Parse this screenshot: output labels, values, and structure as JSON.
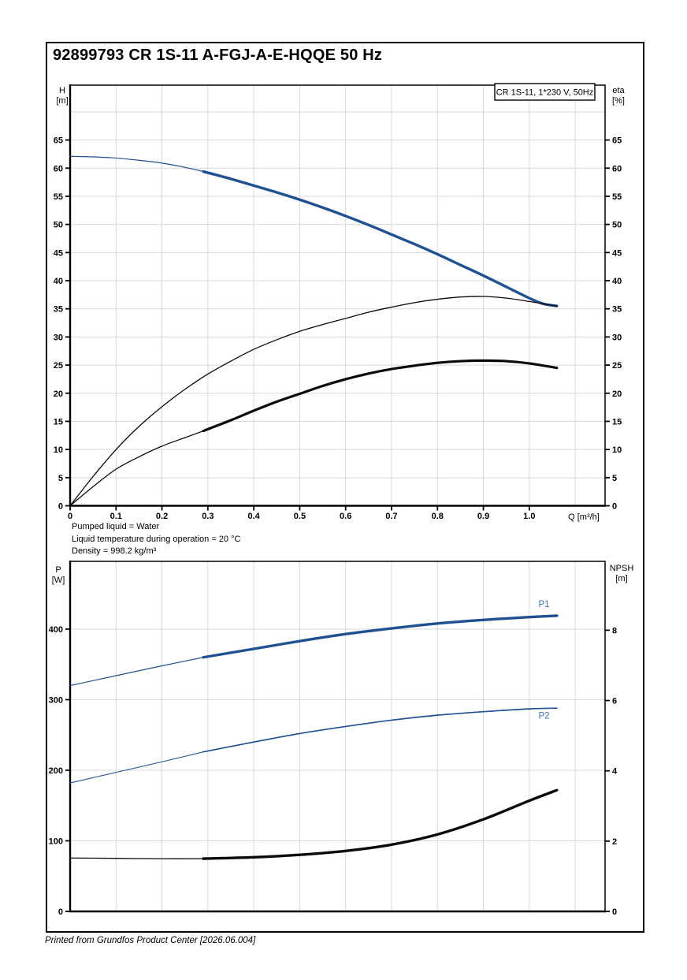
{
  "page": {
    "title": "92899793 CR 1S-11 A-FGJ-A-E-HQQE 50 Hz",
    "footer": "Printed from Grundfos Product Center [2026.06.004]"
  },
  "info_lines": [
    "Pumped liquid = Water",
    "Liquid temperature during operation = 20 °C",
    "Density = 998.2 kg/m³"
  ],
  "colors": {
    "curve_blue": "#1f5091",
    "curve_black": "#0a0a0a",
    "grid": "#d9d9d9",
    "series_label_blue": "#3f72ae",
    "frame": "#000000"
  },
  "chart_data": [
    {
      "name": "head-efficiency-chart",
      "type": "line",
      "legend": "CR 1S-11, 1*230 V, 50Hz",
      "x": {
        "label": "Q [m³/h]",
        "min": 0,
        "max": 1.165,
        "tick_values": [
          0,
          0.1,
          0.2,
          0.3,
          0.4,
          0.5,
          0.6,
          0.7,
          0.8,
          0.9,
          1.0
        ],
        "tick_labels": [
          "0",
          "0.1",
          "0.2",
          "0.3",
          "0.4",
          "0.5",
          "0.6",
          "0.7",
          "0.8",
          "0.9",
          "1.0"
        ],
        "grid": {
          "from": 0.1,
          "to": 1.1,
          "step": 0.1
        }
      },
      "y_left": {
        "label_lines": [
          "H",
          "[m]"
        ],
        "min": 0,
        "max": 74.75,
        "tick_values": [
          0,
          5,
          10,
          15,
          20,
          25,
          30,
          35,
          40,
          45,
          50,
          55,
          60,
          65
        ],
        "tick_labels": [
          "0",
          "5",
          "10",
          "15",
          "20",
          "25",
          "30",
          "35",
          "40",
          "45",
          "50",
          "55",
          "60",
          "65"
        ],
        "grid": {
          "from": 5,
          "to": 70,
          "step": 5
        }
      },
      "y_right": {
        "label_lines": [
          "eta",
          "[%]"
        ],
        "min": 0,
        "max": 74.75,
        "tick_values": [
          0,
          5,
          10,
          15,
          20,
          25,
          30,
          35,
          40,
          45,
          50,
          55,
          60,
          65
        ],
        "tick_labels": [
          "0",
          "5",
          "10",
          "15",
          "20",
          "25",
          "30",
          "35",
          "40",
          "45",
          "50",
          "55",
          "60",
          "65"
        ]
      },
      "series": [
        {
          "name": "head-curve",
          "display": "H",
          "axis": "left",
          "color": "#1f5091",
          "segments": [
            {
              "width": 1.2,
              "points": [
                [
                  0,
                  62.1
                ],
                [
                  0.05,
                  62.0
                ],
                [
                  0.1,
                  61.8
                ],
                [
                  0.15,
                  61.4
                ],
                [
                  0.2,
                  60.9
                ],
                [
                  0.25,
                  60.15
                ],
                [
                  0.29,
                  59.4
                ]
              ]
            },
            {
              "width": 3.4,
              "points": [
                [
                  0.29,
                  59.4
                ],
                [
                  0.35,
                  58.1
                ],
                [
                  0.4,
                  56.9
                ],
                [
                  0.45,
                  55.7
                ],
                [
                  0.5,
                  54.4
                ],
                [
                  0.55,
                  53.0
                ],
                [
                  0.6,
                  51.5
                ],
                [
                  0.65,
                  49.9
                ],
                [
                  0.7,
                  48.2
                ],
                [
                  0.75,
                  46.5
                ],
                [
                  0.8,
                  44.7
                ],
                [
                  0.85,
                  42.8
                ],
                [
                  0.9,
                  40.9
                ],
                [
                  0.95,
                  38.9
                ],
                [
                  1.0,
                  36.9
                ],
                [
                  1.03,
                  35.9
                ],
                [
                  1.06,
                  35.5
                ]
              ]
            }
          ]
        },
        {
          "name": "efficiency-pump-curve",
          "display": "eta pump",
          "axis": "left",
          "color": "#0a0a0a",
          "segments": [
            {
              "width": 1.3,
              "points": [
                [
                  0,
                  0
                ],
                [
                  0.05,
                  5.2
                ],
                [
                  0.1,
                  10.0
                ],
                [
                  0.15,
                  14.1
                ],
                [
                  0.2,
                  17.6
                ],
                [
                  0.25,
                  20.7
                ],
                [
                  0.3,
                  23.4
                ],
                [
                  0.35,
                  25.7
                ],
                [
                  0.4,
                  27.8
                ],
                [
                  0.45,
                  29.5
                ],
                [
                  0.5,
                  31.0
                ],
                [
                  0.55,
                  32.2
                ],
                [
                  0.6,
                  33.3
                ],
                [
                  0.65,
                  34.4
                ],
                [
                  0.7,
                  35.3
                ],
                [
                  0.75,
                  36.1
                ],
                [
                  0.8,
                  36.7
                ],
                [
                  0.85,
                  37.1
                ],
                [
                  0.9,
                  37.2
                ],
                [
                  0.95,
                  36.9
                ],
                [
                  1.0,
                  36.3
                ],
                [
                  1.06,
                  35.5
                ]
              ]
            }
          ]
        },
        {
          "name": "efficiency-total-curve",
          "display": "eta pump+motor",
          "axis": "left",
          "color": "#0a0a0a",
          "segments": [
            {
              "width": 1.3,
              "points": [
                [
                  0,
                  0
                ],
                [
                  0.05,
                  3.4
                ],
                [
                  0.1,
                  6.5
                ],
                [
                  0.15,
                  8.7
                ],
                [
                  0.2,
                  10.6
                ],
                [
                  0.25,
                  12.1
                ],
                [
                  0.29,
                  13.3
                ]
              ]
            },
            {
              "width": 3.2,
              "points": [
                [
                  0.29,
                  13.3
                ],
                [
                  0.35,
                  15.2
                ],
                [
                  0.4,
                  16.9
                ],
                [
                  0.45,
                  18.5
                ],
                [
                  0.5,
                  19.9
                ],
                [
                  0.55,
                  21.3
                ],
                [
                  0.6,
                  22.5
                ],
                [
                  0.65,
                  23.5
                ],
                [
                  0.7,
                  24.3
                ],
                [
                  0.75,
                  24.9
                ],
                [
                  0.8,
                  25.4
                ],
                [
                  0.85,
                  25.7
                ],
                [
                  0.9,
                  25.8
                ],
                [
                  0.95,
                  25.7
                ],
                [
                  1.0,
                  25.3
                ],
                [
                  1.06,
                  24.5
                ]
              ]
            }
          ]
        }
      ],
      "labels": []
    },
    {
      "name": "power-npsh-chart",
      "type": "line",
      "legend": "",
      "x": {
        "label": "",
        "min": 0,
        "max": 1.165,
        "tick_values": [],
        "tick_labels": [],
        "grid": {
          "from": 0.1,
          "to": 1.1,
          "step": 0.1
        }
      },
      "y_left": {
        "label_lines": [
          "P",
          "[W]"
        ],
        "min": 0,
        "max": 496,
        "tick_values": [
          0,
          100,
          200,
          300,
          400
        ],
        "tick_labels": [
          "0",
          "100",
          "200",
          "300",
          "400"
        ],
        "grid": {
          "from": 100,
          "to": 400,
          "step": 100
        }
      },
      "y_right": {
        "label_lines": [
          "NPSH",
          "[m]"
        ],
        "min": 0,
        "max": 9.96,
        "tick_values": [
          0,
          2,
          4,
          6,
          8
        ],
        "tick_labels": [
          "0",
          "2",
          "4",
          "6",
          "8"
        ]
      },
      "series": [
        {
          "name": "p1-curve",
          "display": "P1",
          "axis": "left",
          "color": "#1f5091",
          "segments": [
            {
              "width": 1.2,
              "points": [
                [
                  0,
                  320
                ],
                [
                  0.1,
                  334
                ],
                [
                  0.2,
                  348
                ],
                [
                  0.29,
                  360
                ]
              ]
            },
            {
              "width": 3.4,
              "points": [
                [
                  0.29,
                  360
                ],
                [
                  0.4,
                  372
                ],
                [
                  0.5,
                  383
                ],
                [
                  0.6,
                  393
                ],
                [
                  0.7,
                  401
                ],
                [
                  0.8,
                  408
                ],
                [
                  0.9,
                  413
                ],
                [
                  1.0,
                  417
                ],
                [
                  1.06,
                  419
                ]
              ]
            }
          ]
        },
        {
          "name": "p2-curve",
          "display": "P2",
          "axis": "left",
          "color": "#1f5091",
          "segments": [
            {
              "width": 1.1,
              "points": [
                [
                  0,
                  182
                ],
                [
                  0.1,
                  197
                ],
                [
                  0.2,
                  212
                ],
                [
                  0.29,
                  226
                ]
              ]
            },
            {
              "width": 1.7,
              "points": [
                [
                  0.29,
                  226
                ],
                [
                  0.4,
                  240
                ],
                [
                  0.5,
                  252
                ],
                [
                  0.6,
                  262
                ],
                [
                  0.7,
                  271
                ],
                [
                  0.8,
                  278
                ],
                [
                  0.9,
                  283
                ],
                [
                  1.0,
                  287
                ],
                [
                  1.06,
                  288
                ]
              ]
            }
          ]
        },
        {
          "name": "npsh-curve",
          "display": "NPSH",
          "axis": "right",
          "color": "#0a0a0a",
          "segments": [
            {
              "width": 1.3,
              "points": [
                [
                  0,
                  1.52
                ],
                [
                  0.1,
                  1.51
                ],
                [
                  0.2,
                  1.5
                ],
                [
                  0.29,
                  1.5
                ]
              ]
            },
            {
              "width": 3.4,
              "points": [
                [
                  0.29,
                  1.5
                ],
                [
                  0.4,
                  1.54
                ],
                [
                  0.5,
                  1.61
                ],
                [
                  0.6,
                  1.72
                ],
                [
                  0.7,
                  1.9
                ],
                [
                  0.8,
                  2.19
                ],
                [
                  0.9,
                  2.62
                ],
                [
                  1.0,
                  3.15
                ],
                [
                  1.06,
                  3.45
                ]
              ]
            }
          ]
        }
      ],
      "labels": [
        {
          "text": "P1",
          "q": 1.02,
          "v": 431,
          "axis": "left"
        },
        {
          "text": "P2",
          "q": 1.02,
          "v": 273,
          "axis": "left"
        }
      ]
    }
  ]
}
